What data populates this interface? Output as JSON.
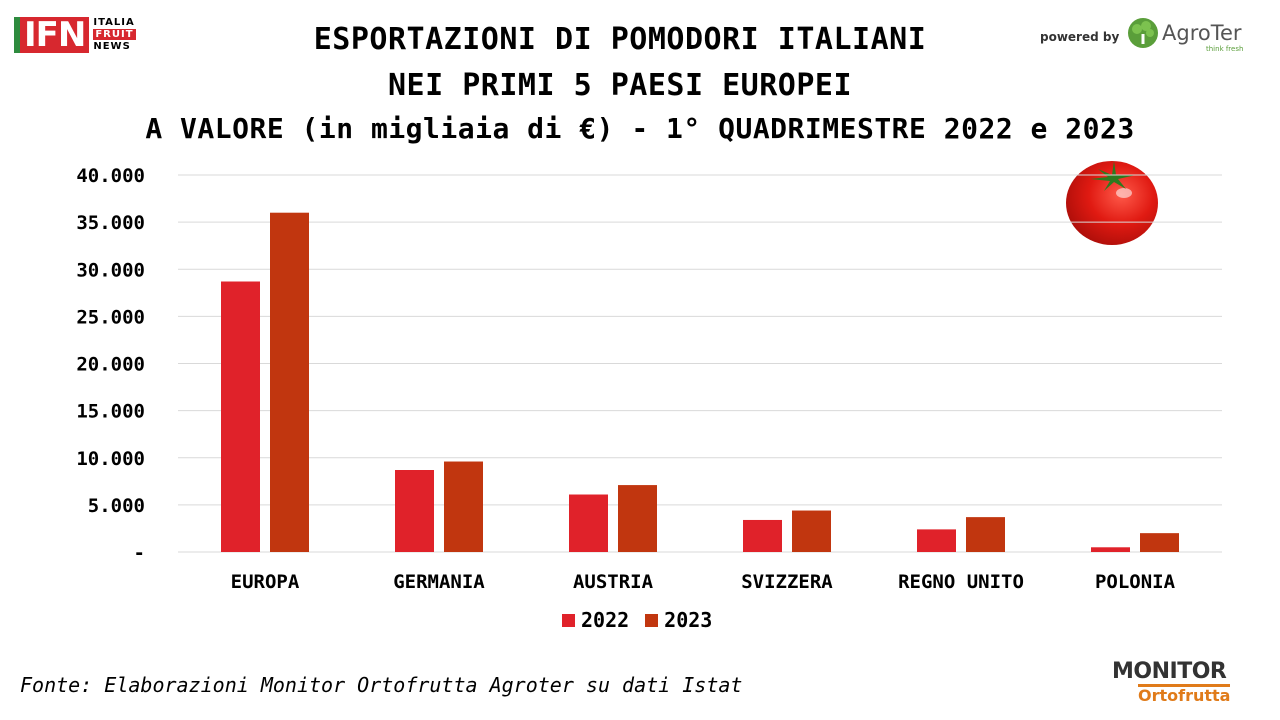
{
  "header": {
    "title_line1": "ESPORTAZIONI DI POMODORI ITALIANI",
    "title_line2": "NEI PRIMI 5 PAESI EUROPEI",
    "title_line3": "A VALORE (in migliaia di €) - 1° QUADRIMESTRE 2022 e 2023"
  },
  "ifn_logo": {
    "mark": "IFN",
    "line1": "ITALIA",
    "line2": "FRUIT",
    "line3": "NEWS"
  },
  "sponsor": {
    "powered_by": "powered by",
    "name": "AgroTer",
    "tagline": "think fresh"
  },
  "monitor_logo": {
    "top": "MONITOR",
    "bottom": "Ortofrutta"
  },
  "footer": {
    "source": "Fonte: Elaborazioni Monitor Ortofrutta Agroter su dati Istat"
  },
  "colors": {
    "s2022": "#e0222a",
    "s2023": "#c1360f",
    "grid": "#d9d9d9"
  },
  "chart_data": {
    "type": "bar",
    "categories": [
      "EUROPA",
      "GERMANIA",
      "AUSTRIA",
      "SVIZZERA",
      "REGNO UNITO",
      "POLONIA"
    ],
    "series": [
      {
        "name": "2022",
        "values": [
          28700,
          8700,
          6100,
          3400,
          2400,
          500
        ]
      },
      {
        "name": "2023",
        "values": [
          36000,
          9600,
          7100,
          4400,
          3700,
          2000
        ]
      }
    ],
    "ylim": [
      0,
      40000
    ],
    "yticks": [
      0,
      5000,
      10000,
      15000,
      20000,
      25000,
      30000,
      35000,
      40000
    ],
    "ytick_labels": [
      "-",
      "5.000",
      "10.000",
      "15.000",
      "20.000",
      "25.000",
      "30.000",
      "35.000",
      "40.000"
    ],
    "grid": true,
    "legend": "bottom"
  }
}
